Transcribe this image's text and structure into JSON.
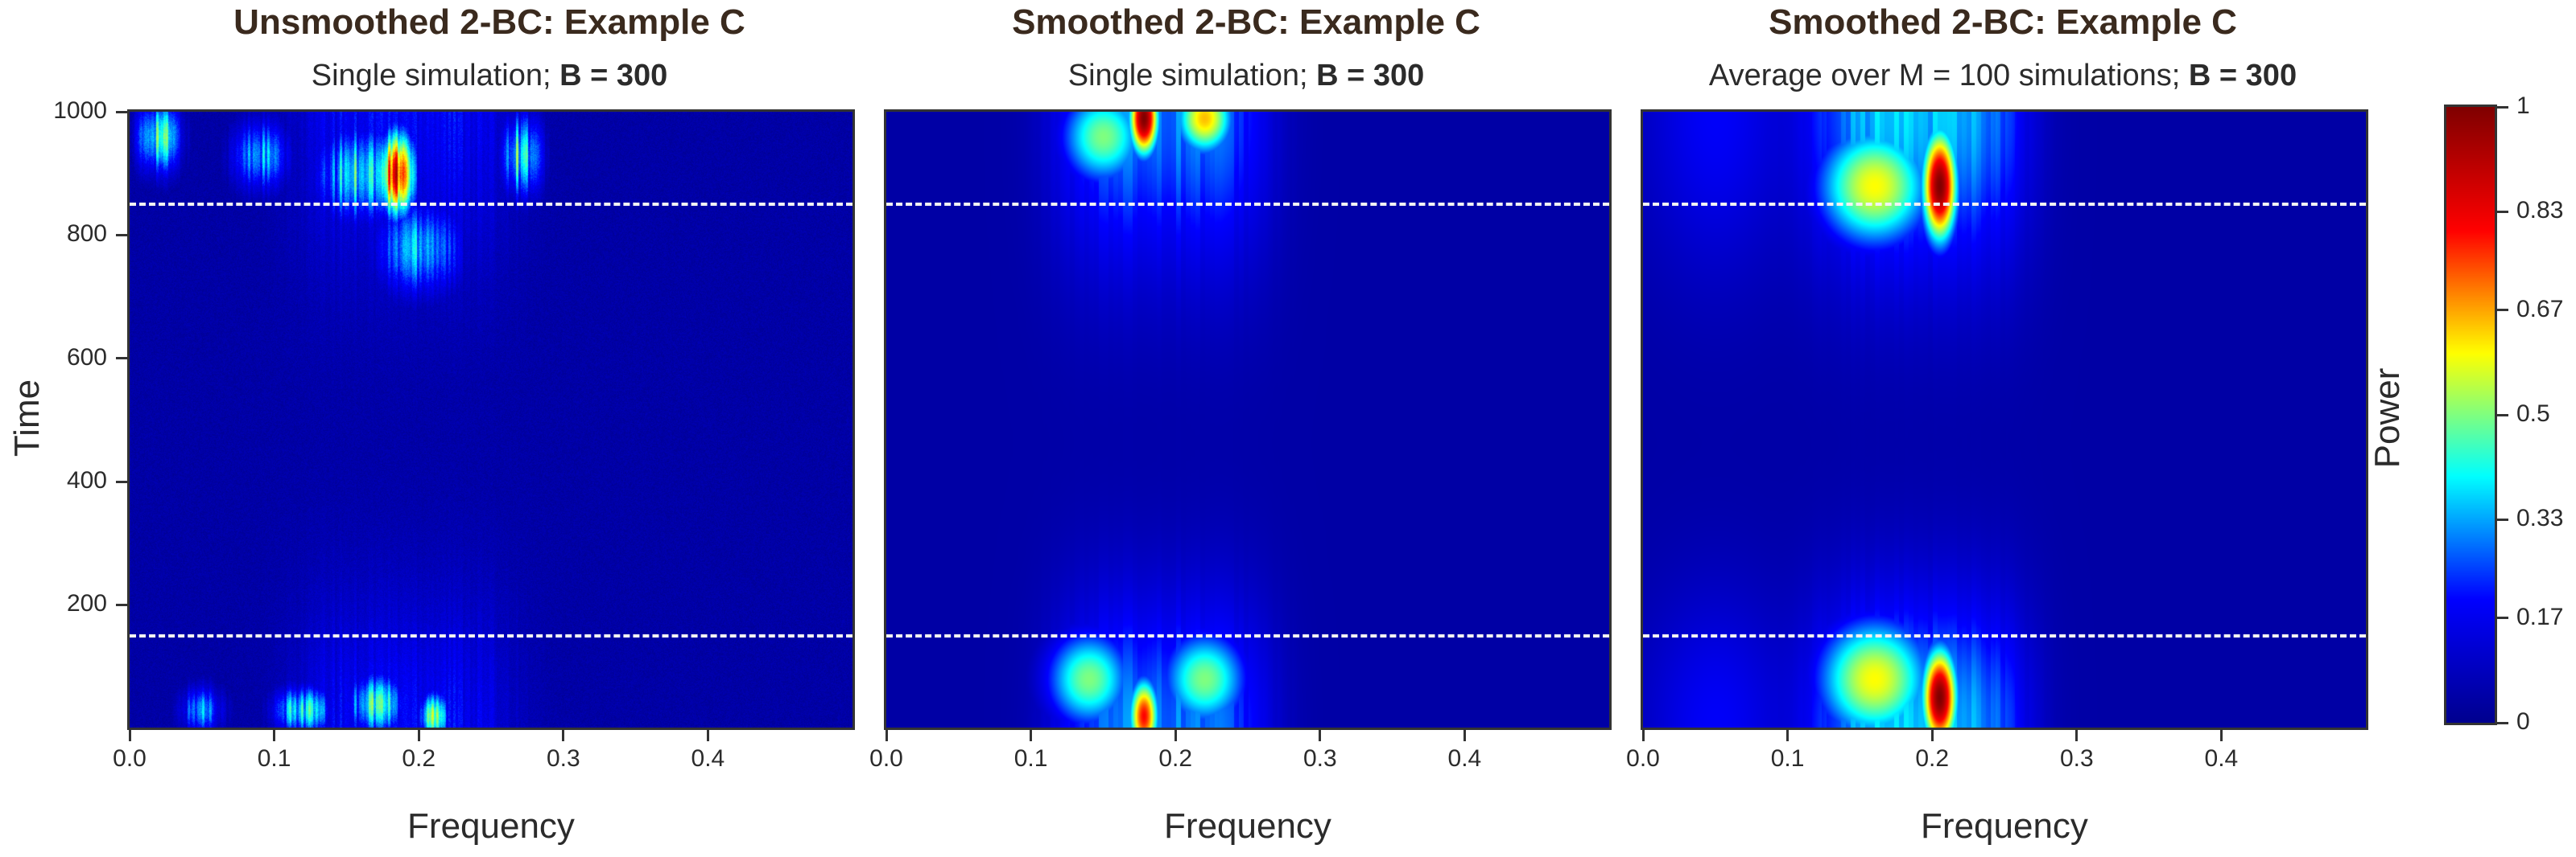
{
  "chart_data": [
    {
      "type": "heatmap",
      "title": "Unsmoothed 2-BC: Example C",
      "subtitle_prefix": "Single simulation; ",
      "subtitle_bold": "B = 300",
      "xlabel": "Frequency",
      "ylabel": "Time",
      "xlim": [
        0,
        0.5
      ],
      "ylim": [
        1,
        1000
      ],
      "x_ticks": [
        "0.0",
        "0.1",
        "0.2",
        "0.3",
        "0.4"
      ],
      "y_ticks": [
        "200",
        "400",
        "600",
        "800",
        "1000"
      ],
      "reference_lines_time": [
        150,
        850
      ],
      "grid": false,
      "hotspots": [
        {
          "freq": 0.185,
          "time": 900,
          "power": 1.0,
          "fw": 0.012,
          "tw": 70
        },
        {
          "freq": 0.16,
          "time": 900,
          "power": 0.5,
          "fw": 0.03,
          "tw": 80
        },
        {
          "freq": 0.2,
          "time": 780,
          "power": 0.45,
          "fw": 0.03,
          "tw": 80
        },
        {
          "freq": 0.02,
          "time": 960,
          "power": 0.55,
          "fw": 0.015,
          "tw": 60
        },
        {
          "freq": 0.09,
          "time": 930,
          "power": 0.4,
          "fw": 0.02,
          "tw": 60
        },
        {
          "freq": 0.27,
          "time": 930,
          "power": 0.5,
          "fw": 0.015,
          "tw": 70
        },
        {
          "freq": 0.21,
          "time": 20,
          "power": 0.7,
          "fw": 0.01,
          "tw": 40
        },
        {
          "freq": 0.17,
          "time": 40,
          "power": 0.55,
          "fw": 0.02,
          "tw": 50
        },
        {
          "freq": 0.12,
          "time": 30,
          "power": 0.5,
          "fw": 0.02,
          "tw": 40
        },
        {
          "freq": 0.05,
          "time": 30,
          "power": 0.4,
          "fw": 0.015,
          "tw": 40
        }
      ]
    },
    {
      "type": "heatmap",
      "title": "Smoothed 2-BC: Example C",
      "subtitle_prefix": "Single simulation; ",
      "subtitle_bold": "B = 300",
      "xlabel": "Frequency",
      "ylabel": "",
      "xlim": [
        0,
        0.5
      ],
      "ylim": [
        1,
        1000
      ],
      "x_ticks": [
        "0.0",
        "0.1",
        "0.2",
        "0.3",
        "0.4"
      ],
      "y_ticks": [],
      "reference_lines_time": [
        150,
        850
      ],
      "grid": false,
      "hotspots": [
        {
          "freq": 0.178,
          "time": 990,
          "power": 1.0,
          "fw": 0.01,
          "tw": 60
        },
        {
          "freq": 0.22,
          "time": 990,
          "power": 0.65,
          "fw": 0.02,
          "tw": 60
        },
        {
          "freq": 0.15,
          "time": 960,
          "power": 0.5,
          "fw": 0.03,
          "tw": 80
        },
        {
          "freq": 0.178,
          "time": 20,
          "power": 0.8,
          "fw": 0.01,
          "tw": 60
        },
        {
          "freq": 0.14,
          "time": 80,
          "power": 0.5,
          "fw": 0.03,
          "tw": 80
        },
        {
          "freq": 0.22,
          "time": 80,
          "power": 0.5,
          "fw": 0.03,
          "tw": 80
        }
      ]
    },
    {
      "type": "heatmap",
      "title": "Smoothed 2-BC: Example C",
      "subtitle_prefix": "Average over M = 100 simulations; ",
      "subtitle_bold": "B = 300",
      "xlabel": "Frequency",
      "ylabel": "",
      "xlim": [
        0,
        0.5
      ],
      "ylim": [
        1,
        1000
      ],
      "x_ticks": [
        "0.0",
        "0.1",
        "0.2",
        "0.3",
        "0.4"
      ],
      "y_ticks": [],
      "reference_lines_time": [
        150,
        850
      ],
      "grid": false,
      "hotspots": [
        {
          "freq": 0.205,
          "time": 880,
          "power": 1.0,
          "fw": 0.012,
          "tw": 90
        },
        {
          "freq": 0.16,
          "time": 880,
          "power": 0.6,
          "fw": 0.04,
          "tw": 100
        },
        {
          "freq": 0.205,
          "time": 50,
          "power": 1.0,
          "fw": 0.012,
          "tw": 80
        },
        {
          "freq": 0.16,
          "time": 80,
          "power": 0.6,
          "fw": 0.04,
          "tw": 100
        }
      ]
    }
  ],
  "colorbar": {
    "label": "Power",
    "range": [
      0,
      1
    ],
    "ticks": [
      "0",
      "0.17",
      "0.33",
      "0.5",
      "0.67",
      "0.83",
      "1"
    ],
    "colormap": [
      "#00008f",
      "#0000ff",
      "#00ffff",
      "#ffff00",
      "#ff0000",
      "#800000"
    ]
  }
}
